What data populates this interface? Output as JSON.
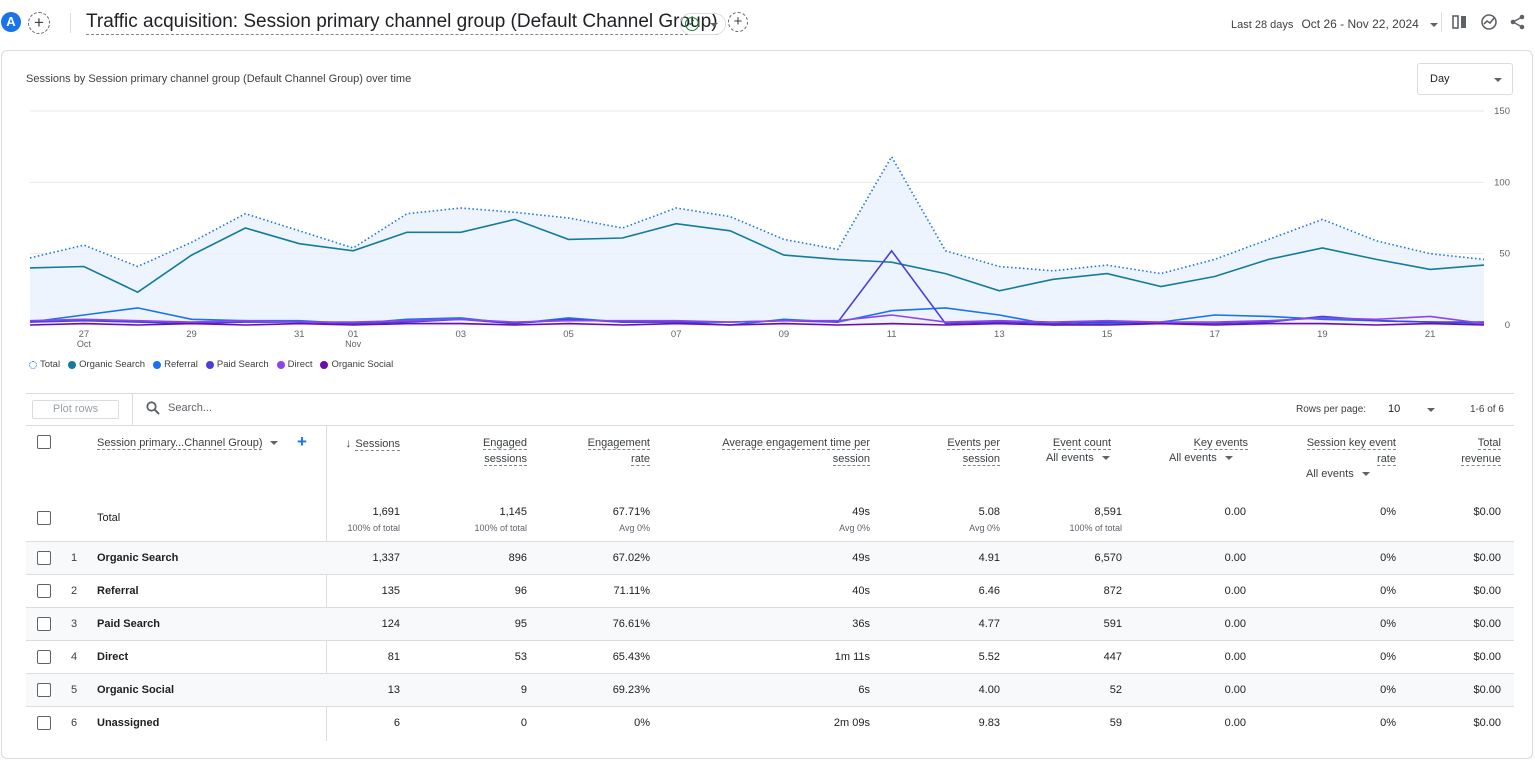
{
  "header": {
    "avatar_letter": "A",
    "title": "Traffic acquisition: Session primary channel group (Default Channel Group)",
    "date_label": "Last 28 days",
    "date_range": "Oct 26 - Nov 22, 2024"
  },
  "chart_card": {
    "title": "Sessions by Session primary channel group (Default Channel Group) over time",
    "granularity": "Day"
  },
  "chart_data": {
    "type": "line",
    "x": [
      "Oct 26",
      "Oct 27",
      "Oct 28",
      "Oct 29",
      "Oct 30",
      "Oct 31",
      "Nov 01",
      "Nov 02",
      "Nov 03",
      "Nov 04",
      "Nov 05",
      "Nov 06",
      "Nov 07",
      "Nov 08",
      "Nov 09",
      "Nov 10",
      "Nov 11",
      "Nov 12",
      "Nov 13",
      "Nov 14",
      "Nov 15",
      "Nov 16",
      "Nov 17",
      "Nov 18",
      "Nov 19",
      "Nov 20",
      "Nov 21",
      "Nov 22"
    ],
    "x_tick_labels": [
      "27",
      "29",
      "31",
      "01",
      "03",
      "05",
      "07",
      "09",
      "11",
      "13",
      "15",
      "17",
      "19",
      "21"
    ],
    "x_tick_index": [
      1,
      3,
      5,
      6,
      8,
      10,
      12,
      14,
      16,
      18,
      20,
      22,
      24,
      26
    ],
    "x_month_labels": [
      {
        "index": 1,
        "label": "Oct"
      },
      {
        "index": 6,
        "label": "Nov"
      }
    ],
    "y_ticks": [
      0,
      50,
      100,
      150
    ],
    "ylim": [
      0,
      150
    ],
    "grid": true,
    "series": [
      {
        "name": "Total",
        "color": "#1a73e8",
        "style": "dotted-area",
        "values": [
          47,
          56,
          41,
          58,
          78,
          66,
          54,
          78,
          82,
          79,
          75,
          68,
          82,
          76,
          60,
          53,
          118,
          52,
          41,
          38,
          42,
          36,
          46,
          60,
          74,
          59,
          50,
          46
        ]
      },
      {
        "name": "Organic Search",
        "color": "#137b9c",
        "style": "line",
        "values": [
          40,
          41,
          23,
          49,
          68,
          57,
          52,
          65,
          65,
          74,
          60,
          61,
          71,
          66,
          49,
          46,
          44,
          36,
          24,
          32,
          36,
          27,
          34,
          46,
          54,
          46,
          39,
          42
        ]
      },
      {
        "name": "Referral",
        "color": "#1a73e8",
        "style": "line",
        "values": [
          2,
          7,
          12,
          4,
          3,
          3,
          1,
          4,
          5,
          1,
          5,
          2,
          2,
          0,
          4,
          2,
          10,
          12,
          7,
          0,
          1,
          2,
          7,
          6,
          4,
          3,
          2,
          1
        ]
      },
      {
        "name": "Paid Search",
        "color": "#4a3fd8",
        "style": "line",
        "values": [
          2,
          3,
          2,
          1,
          2,
          2,
          1,
          2,
          4,
          1,
          4,
          2,
          2,
          2,
          3,
          2,
          52,
          1,
          2,
          1,
          2,
          1,
          1,
          2,
          6,
          3,
          2,
          2
        ]
      },
      {
        "name": "Direct",
        "color": "#8e44ec",
        "style": "line",
        "values": [
          3,
          4,
          3,
          2,
          3,
          2,
          2,
          3,
          4,
          2,
          3,
          3,
          3,
          2,
          3,
          3,
          7,
          2,
          3,
          2,
          3,
          2,
          2,
          3,
          5,
          4,
          6,
          1
        ]
      },
      {
        "name": "Organic Social",
        "color": "#6a0dad",
        "style": "line",
        "values": [
          0,
          1,
          0,
          1,
          0,
          1,
          0,
          1,
          1,
          0,
          1,
          0,
          1,
          0,
          1,
          0,
          1,
          0,
          1,
          0,
          0,
          1,
          0,
          1,
          1,
          0,
          1,
          0
        ]
      }
    ]
  },
  "legend": [
    {
      "label": "Total",
      "color": "#1a73e8"
    },
    {
      "label": "Organic Search",
      "color": "#137b9c"
    },
    {
      "label": "Referral",
      "color": "#1a73e8"
    },
    {
      "label": "Paid Search",
      "color": "#4a3fd8"
    },
    {
      "label": "Direct",
      "color": "#8e44ec"
    },
    {
      "label": "Organic Social",
      "color": "#6a0dad"
    }
  ],
  "toolbar": {
    "plot_rows": "Plot rows",
    "search_placeholder": "Search...",
    "rows_per_page_label": "Rows per page:",
    "rows_per_page": "10",
    "pager": "1-6 of 6"
  },
  "table": {
    "dimension_header": "Session primary...Channel Group)",
    "columns": {
      "sessions": "Sessions",
      "engaged_1": "Engaged",
      "engaged_2": "sessions",
      "engrate_1": "Engagement",
      "engrate_2": "rate",
      "avgtime_1": "Average engagement time per",
      "avgtime_2": "session",
      "events_1": "Events per",
      "events_2": "session",
      "eventcount": "Event count",
      "keyevents": "Key events",
      "skr_1": "Session key event",
      "skr_2": "rate",
      "rev_1": "Total",
      "rev_2": "revenue",
      "all_events": "All events"
    },
    "total": {
      "label": "Total",
      "sessions": "1,691",
      "sessions_sub": "100% of total",
      "engaged": "1,145",
      "engaged_sub": "100% of total",
      "engrate": "67.71%",
      "engrate_sub": "Avg 0%",
      "avgtime": "49s",
      "avgtime_sub": "Avg 0%",
      "events": "5.08",
      "events_sub": "Avg 0%",
      "eventcount": "8,591",
      "eventcount_sub": "100% of total",
      "keyevents": "0.00",
      "skr": "0%",
      "revenue": "$0.00"
    },
    "rows": [
      {
        "num": "1",
        "name": "Organic Search",
        "sessions": "1,337",
        "engaged": "896",
        "engrate": "67.02%",
        "avgtime": "49s",
        "events": "4.91",
        "eventcount": "6,570",
        "keyevents": "0.00",
        "skr": "0%",
        "revenue": "$0.00"
      },
      {
        "num": "2",
        "name": "Referral",
        "sessions": "135",
        "engaged": "96",
        "engrate": "71.11%",
        "avgtime": "40s",
        "events": "6.46",
        "eventcount": "872",
        "keyevents": "0.00",
        "skr": "0%",
        "revenue": "$0.00"
      },
      {
        "num": "3",
        "name": "Paid Search",
        "sessions": "124",
        "engaged": "95",
        "engrate": "76.61%",
        "avgtime": "36s",
        "events": "4.77",
        "eventcount": "591",
        "keyevents": "0.00",
        "skr": "0%",
        "revenue": "$0.00"
      },
      {
        "num": "4",
        "name": "Direct",
        "sessions": "81",
        "engaged": "53",
        "engrate": "65.43%",
        "avgtime": "1m 11s",
        "events": "5.52",
        "eventcount": "447",
        "keyevents": "0.00",
        "skr": "0%",
        "revenue": "$0.00"
      },
      {
        "num": "5",
        "name": "Organic Social",
        "sessions": "13",
        "engaged": "9",
        "engrate": "69.23%",
        "avgtime": "6s",
        "events": "4.00",
        "eventcount": "52",
        "keyevents": "0.00",
        "skr": "0%",
        "revenue": "$0.00"
      },
      {
        "num": "6",
        "name": "Unassigned",
        "sessions": "6",
        "engaged": "0",
        "engrate": "0%",
        "avgtime": "2m 09s",
        "events": "9.83",
        "eventcount": "59",
        "keyevents": "0.00",
        "skr": "0%",
        "revenue": "$0.00"
      }
    ]
  }
}
